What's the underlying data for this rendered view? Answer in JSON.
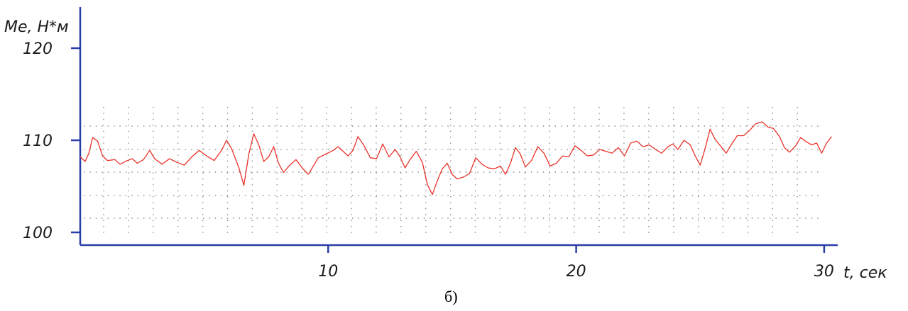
{
  "chart_data": {
    "type": "line",
    "ylabel": "Me, H*м",
    "xlabel": "t, сек",
    "caption": "б)",
    "x_ticks": [
      "10",
      "20",
      "30"
    ],
    "y_ticks": [
      "100",
      "110",
      "120"
    ],
    "xlim": [
      0,
      30
    ],
    "ylim": [
      100,
      122
    ],
    "grid": true,
    "series": [
      {
        "color": "#e8322a",
        "points": [
          [
            0.0,
            108.2
          ],
          [
            0.2,
            107.7
          ],
          [
            0.35,
            108.6
          ],
          [
            0.5,
            110.3
          ],
          [
            0.7,
            109.9
          ],
          [
            0.9,
            108.3
          ],
          [
            1.1,
            107.8
          ],
          [
            1.4,
            107.9
          ],
          [
            1.6,
            107.4
          ],
          [
            1.9,
            107.8
          ],
          [
            2.1,
            108.0
          ],
          [
            2.3,
            107.5
          ],
          [
            2.55,
            107.9
          ],
          [
            2.8,
            108.9
          ],
          [
            3.0,
            108.0
          ],
          [
            3.3,
            107.4
          ],
          [
            3.6,
            108.0
          ],
          [
            3.9,
            107.6
          ],
          [
            4.2,
            107.3
          ],
          [
            4.5,
            108.2
          ],
          [
            4.8,
            108.9
          ],
          [
            5.1,
            108.3
          ],
          [
            5.4,
            107.8
          ],
          [
            5.7,
            108.9
          ],
          [
            5.9,
            110.0
          ],
          [
            6.1,
            109.1
          ],
          [
            6.4,
            107.0
          ],
          [
            6.6,
            105.1
          ],
          [
            6.8,
            108.5
          ],
          [
            7.0,
            110.7
          ],
          [
            7.2,
            109.5
          ],
          [
            7.4,
            107.7
          ],
          [
            7.6,
            108.2
          ],
          [
            7.8,
            109.3
          ],
          [
            8.0,
            107.5
          ],
          [
            8.2,
            106.5
          ],
          [
            8.45,
            107.3
          ],
          [
            8.7,
            107.9
          ],
          [
            8.95,
            107.0
          ],
          [
            9.2,
            106.3
          ],
          [
            9.4,
            107.2
          ],
          [
            9.6,
            108.1
          ],
          [
            9.9,
            108.5
          ],
          [
            10.2,
            108.9
          ],
          [
            10.4,
            109.3
          ],
          [
            10.6,
            108.8
          ],
          [
            10.8,
            108.3
          ],
          [
            11.0,
            108.9
          ],
          [
            11.2,
            110.4
          ],
          [
            11.45,
            109.4
          ],
          [
            11.7,
            108.1
          ],
          [
            11.95,
            108.0
          ],
          [
            12.2,
            109.6
          ],
          [
            12.45,
            108.2
          ],
          [
            12.7,
            109.0
          ],
          [
            12.9,
            108.2
          ],
          [
            13.1,
            107.0
          ],
          [
            13.3,
            107.9
          ],
          [
            13.55,
            108.8
          ],
          [
            13.8,
            107.6
          ],
          [
            14.0,
            105.2
          ],
          [
            14.2,
            104.1
          ],
          [
            14.4,
            105.6
          ],
          [
            14.6,
            106.9
          ],
          [
            14.8,
            107.5
          ],
          [
            15.0,
            106.3
          ],
          [
            15.2,
            105.8
          ],
          [
            15.45,
            106.0
          ],
          [
            15.7,
            106.4
          ],
          [
            15.95,
            108.1
          ],
          [
            16.2,
            107.4
          ],
          [
            16.45,
            107.0
          ],
          [
            16.7,
            106.9
          ],
          [
            16.95,
            107.2
          ],
          [
            17.15,
            106.3
          ],
          [
            17.35,
            107.5
          ],
          [
            17.55,
            109.2
          ],
          [
            17.75,
            108.5
          ],
          [
            17.95,
            107.1
          ],
          [
            18.2,
            107.8
          ],
          [
            18.45,
            109.3
          ],
          [
            18.7,
            108.6
          ],
          [
            18.95,
            107.2
          ],
          [
            19.2,
            107.5
          ],
          [
            19.45,
            108.3
          ],
          [
            19.7,
            108.2
          ],
          [
            19.95,
            109.4
          ],
          [
            20.2,
            108.9
          ],
          [
            20.45,
            108.3
          ],
          [
            20.7,
            108.4
          ],
          [
            20.95,
            109.0
          ],
          [
            21.2,
            108.8
          ],
          [
            21.45,
            108.6
          ],
          [
            21.7,
            109.2
          ],
          [
            21.95,
            108.3
          ],
          [
            22.2,
            109.7
          ],
          [
            22.45,
            109.9
          ],
          [
            22.7,
            109.3
          ],
          [
            22.95,
            109.5
          ],
          [
            23.2,
            109.0
          ],
          [
            23.45,
            108.6
          ],
          [
            23.7,
            109.3
          ],
          [
            23.9,
            109.6
          ],
          [
            24.1,
            109.0
          ],
          [
            24.35,
            110.0
          ],
          [
            24.6,
            109.5
          ],
          [
            24.8,
            108.3
          ],
          [
            25.0,
            107.3
          ],
          [
            25.2,
            109.1
          ],
          [
            25.4,
            111.2
          ],
          [
            25.6,
            110.1
          ],
          [
            25.85,
            109.3
          ],
          [
            26.05,
            108.6
          ],
          [
            26.25,
            109.5
          ],
          [
            26.5,
            110.5
          ],
          [
            26.75,
            110.5
          ],
          [
            27.0,
            111.1
          ],
          [
            27.25,
            111.8
          ],
          [
            27.5,
            112.0
          ],
          [
            27.75,
            111.4
          ],
          [
            27.95,
            111.3
          ],
          [
            28.2,
            110.4
          ],
          [
            28.4,
            109.2
          ],
          [
            28.6,
            108.7
          ],
          [
            28.85,
            109.4
          ],
          [
            29.05,
            110.3
          ],
          [
            29.3,
            109.8
          ],
          [
            29.5,
            109.5
          ],
          [
            29.7,
            109.7
          ],
          [
            29.9,
            108.6
          ],
          [
            30.1,
            109.7
          ],
          [
            30.3,
            110.4
          ]
        ]
      }
    ]
  }
}
